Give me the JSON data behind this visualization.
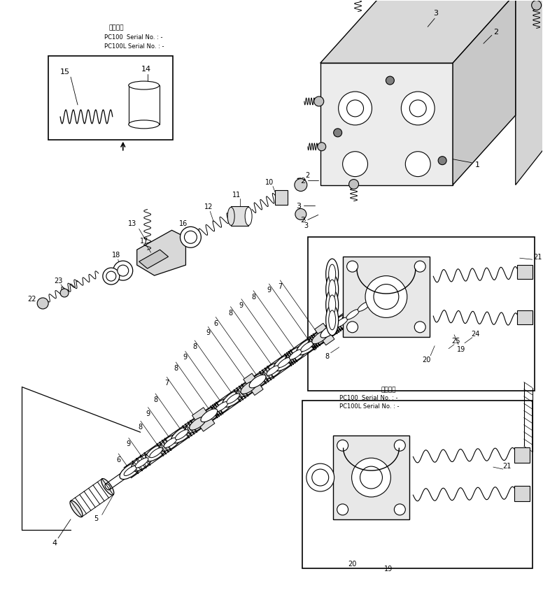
{
  "bg_color": "#ffffff",
  "figsize": [
    7.76,
    8.45
  ],
  "dpi": 100,
  "top_header": {
    "text1": "適用号機",
    "text2": "PC100  Serial No. : -",
    "text3": "PC100L Serial No. : -"
  },
  "br_header": {
    "text1": "適用号機",
    "text2": "PC100  Serial No. : -",
    "text3": "PC100L Serial No. : -"
  }
}
